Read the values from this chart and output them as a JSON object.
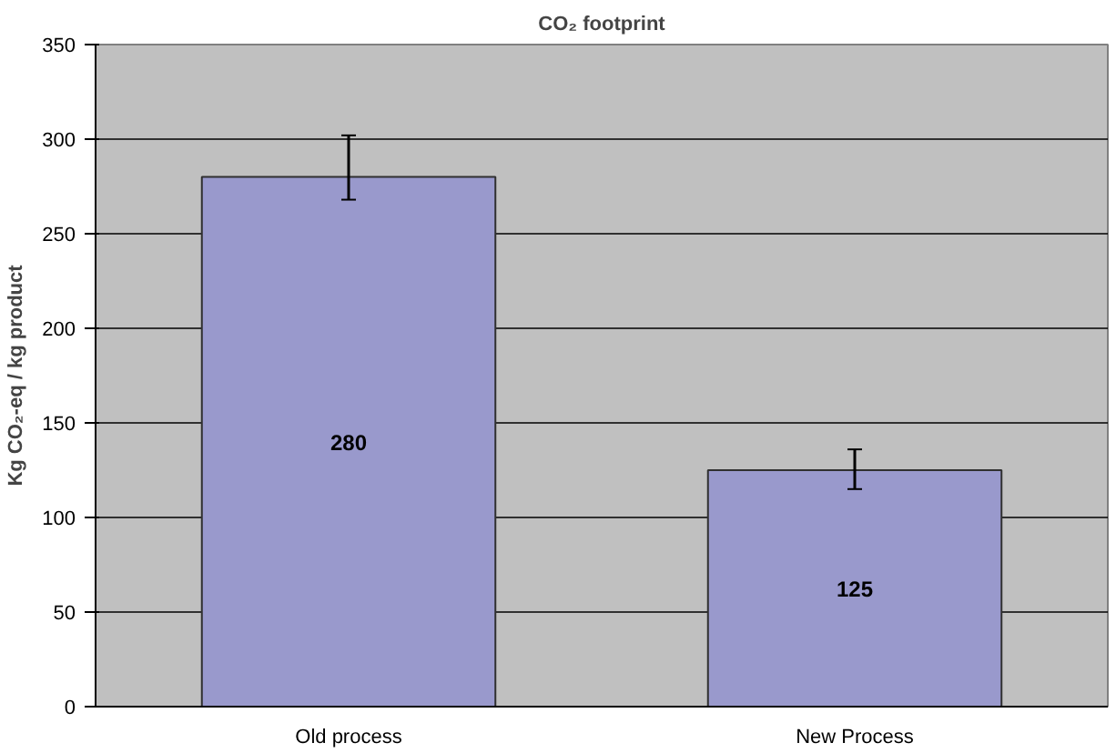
{
  "chart_data": {
    "type": "bar",
    "title": "CO₂ footprint",
    "ylabel": "Kg CO₂-eq / kg product",
    "categories": [
      "Old process",
      "New Process"
    ],
    "values": [
      280,
      125
    ],
    "errors": [
      [
        268,
        302
      ],
      [
        115,
        136
      ]
    ],
    "color": "#9999cc",
    "ylim": [
      0,
      350
    ],
    "yticks": [
      0,
      50,
      100,
      150,
      200,
      250,
      300,
      350
    ],
    "grid": "y",
    "data_labels": true
  }
}
